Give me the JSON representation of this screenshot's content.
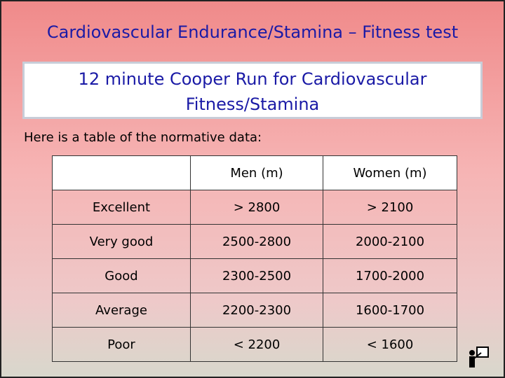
{
  "title": "Cardiovascular Endurance/Stamina – Fitness test",
  "box_text": "12 minute Cooper Run for Cardiovascular Fitness/Stamina",
  "intro": "Here is a table of the normative data:",
  "table": {
    "header": [
      "",
      "Men (m)",
      "Women (m)"
    ],
    "rows": [
      [
        "Excellent",
        "> 2800",
        "> 2100"
      ],
      [
        "Very good",
        "2500-2800",
        "2000-2100"
      ],
      [
        "Good",
        "2300-2500",
        "1700-2000"
      ],
      [
        "Average",
        "2200-2300",
        "1600-1700"
      ],
      [
        "Poor",
        "< 2200",
        "< 1600"
      ]
    ]
  }
}
